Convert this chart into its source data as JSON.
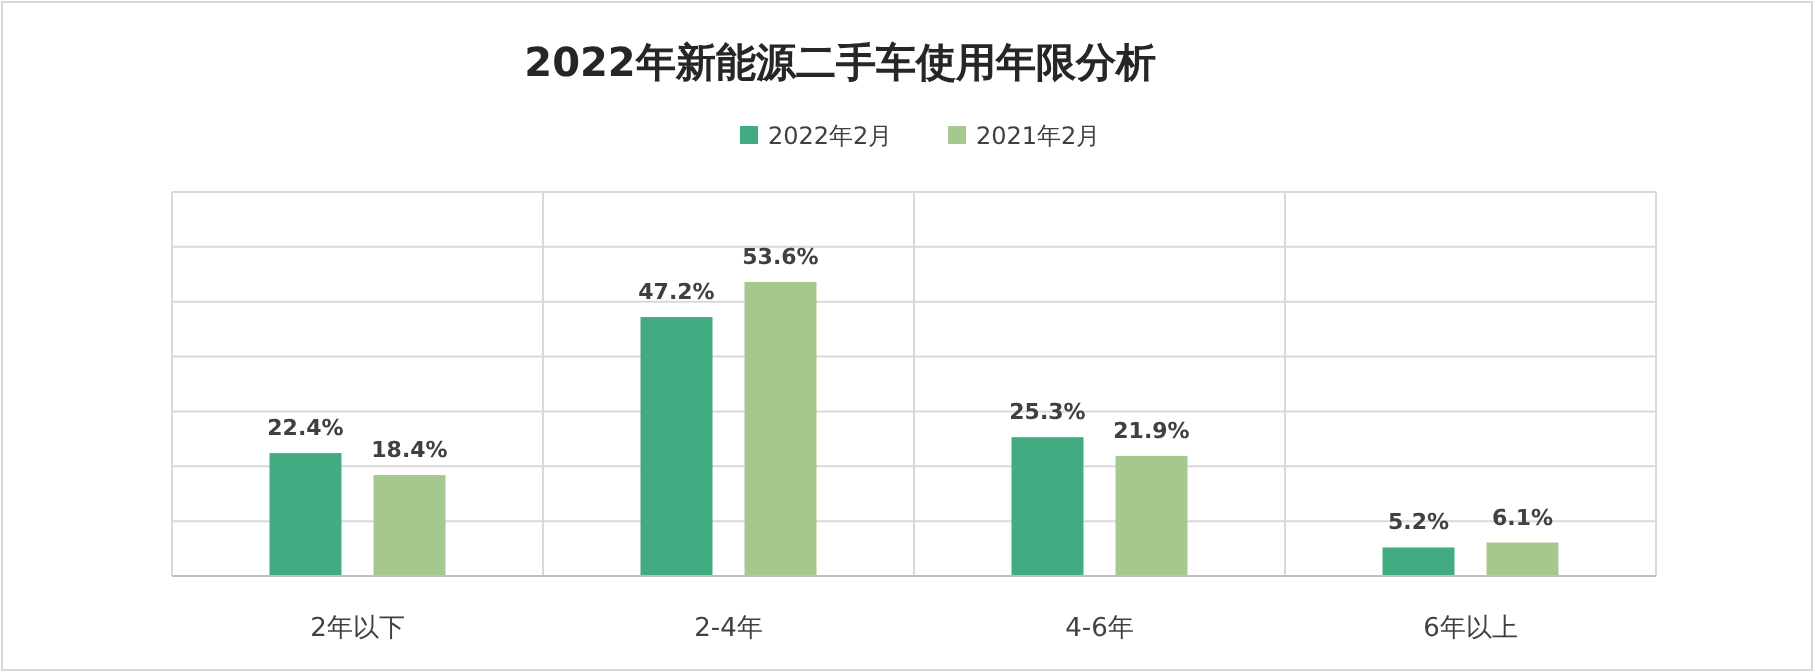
{
  "chart_data": {
    "type": "bar",
    "title": "2022年新能源二手车使用年限分析",
    "categories": [
      "2年以下",
      "2-4年",
      "4-6年",
      "6年以上"
    ],
    "series": [
      {
        "name": "2022年2月",
        "color": "#43ab82",
        "values": [
          22.4,
          47.2,
          25.3,
          5.2
        ],
        "value_labels": [
          "22.4%",
          "47.2%",
          "25.3%",
          "5.2%"
        ]
      },
      {
        "name": "2021年2月",
        "color": "#a5c88f",
        "values": [
          18.4,
          53.6,
          21.9,
          6.1
        ],
        "value_labels": [
          "18.4%",
          "53.6%",
          "21.9%",
          "6.1%"
        ]
      }
    ],
    "ylim": [
      0,
      70
    ],
    "yticks": [
      {
        "value": 0,
        "label": null
      },
      {
        "value": 10,
        "label": null
      },
      {
        "value": 20,
        "label": null
      },
      {
        "value": 30,
        "label": null
      },
      {
        "value": 40,
        "label": null
      },
      {
        "value": 50,
        "label": null
      },
      {
        "value": 60,
        "label": null
      },
      {
        "value": 70,
        "label": null
      }
    ],
    "tick_labels": "x",
    "grid": true,
    "legend": "top"
  }
}
